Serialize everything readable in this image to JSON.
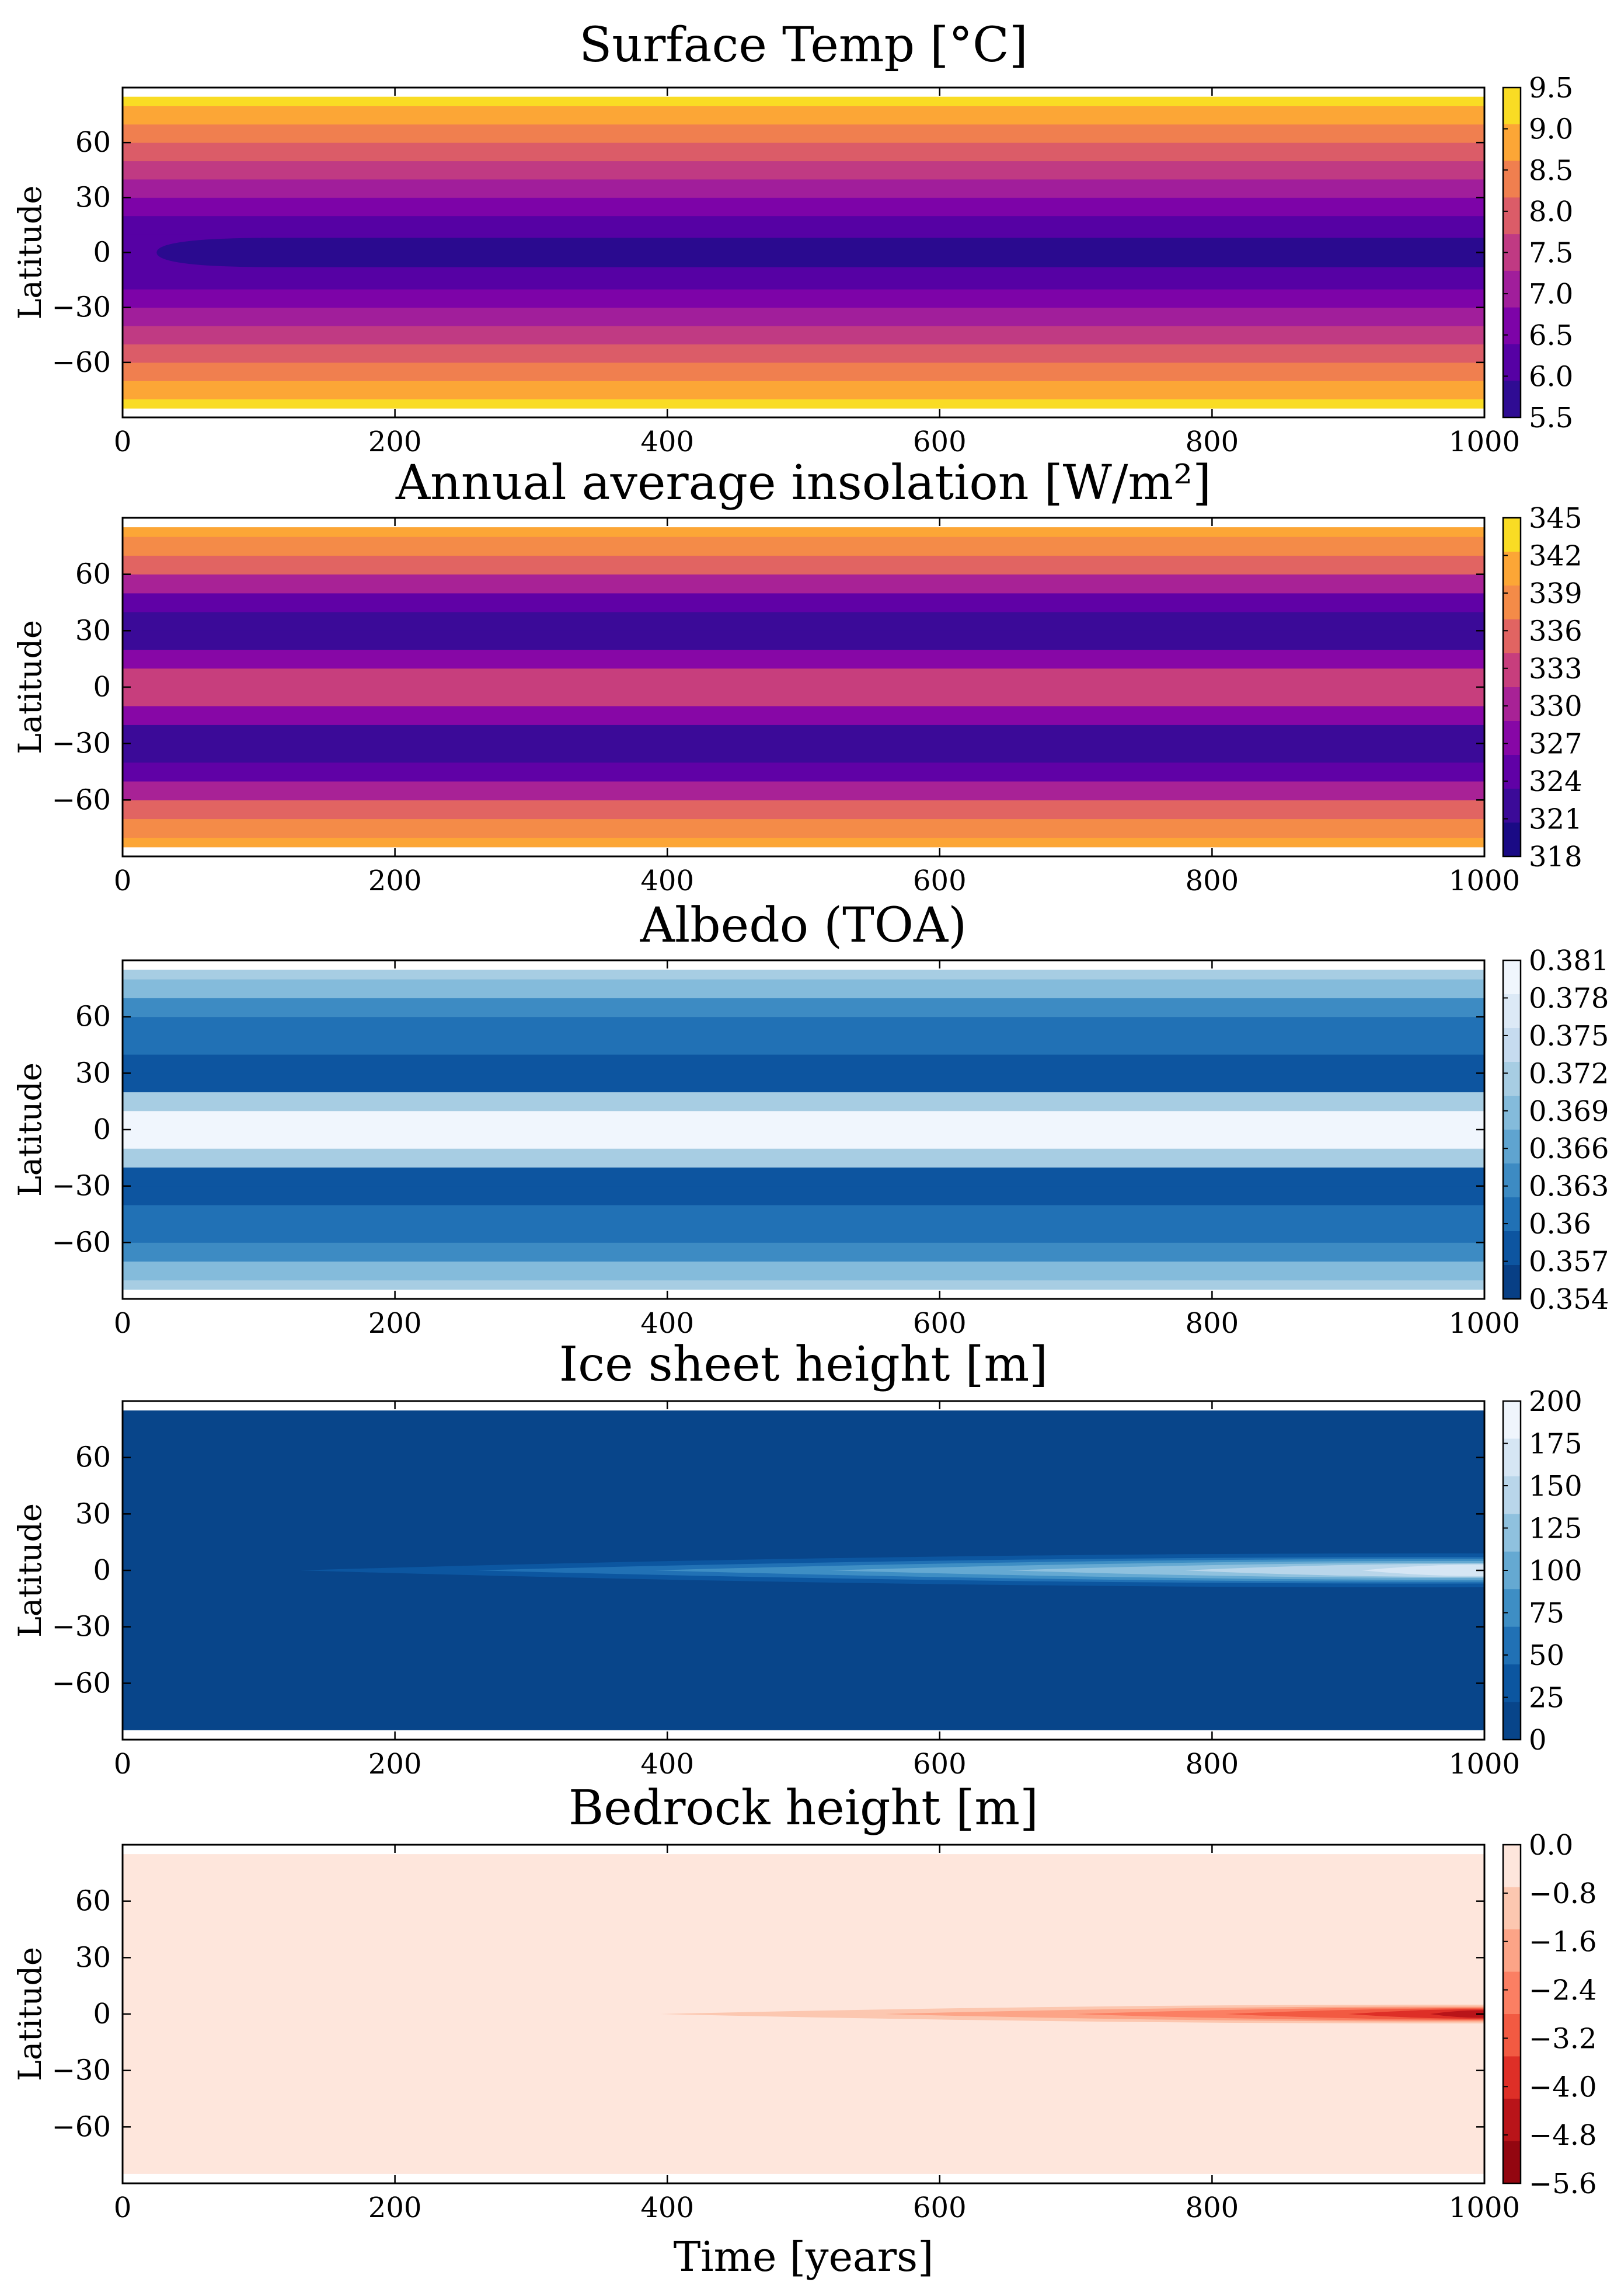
{
  "figure": {
    "xlabel": "Time [years]"
  },
  "chart_data": [
    {
      "type": "heatmap",
      "title": "Surface Temp [°C]",
      "xlabel": "",
      "ylabel": "Latitude",
      "xlim": [
        0,
        1000
      ],
      "ylim": [
        -90,
        90
      ],
      "x_ticks": [
        0,
        200,
        400,
        600,
        800,
        1000
      ],
      "y_ticks": [
        60,
        30,
        0,
        -30,
        -60
      ],
      "colormap": "inferno-like (plasma)",
      "colorbar_levels": [
        5.5,
        6.0,
        6.5,
        7.0,
        7.5,
        8.0,
        8.5,
        9.0,
        9.5
      ],
      "colorbar_colors": [
        "#2f0c93",
        "#5601a4",
        "#7d03a8",
        "#a11e9b",
        "#c03a83",
        "#db5c68",
        "#f07f4f",
        "#fca636",
        "#f9dc24"
      ],
      "pattern": "latitude_bands_constant_in_time_with_equatorial_minimum",
      "band_levels_by_latitude": {
        "latitudes": [
          -85,
          -75,
          -65,
          -55,
          -45,
          -35,
          -25,
          -15,
          -5,
          5,
          15,
          25,
          35,
          45,
          55,
          65,
          75,
          85
        ],
        "values": [
          9.3,
          8.8,
          8.3,
          7.8,
          7.3,
          6.9,
          6.5,
          6.2,
          5.9,
          5.9,
          6.2,
          6.5,
          6.9,
          7.3,
          7.8,
          8.3,
          8.8,
          9.3
        ]
      },
      "grid": false,
      "legend": "colorbar-right"
    },
    {
      "type": "heatmap",
      "title": "Annual average insolation [W/m²]",
      "xlabel": "",
      "ylabel": "Latitude",
      "xlim": [
        0,
        1000
      ],
      "ylim": [
        -90,
        90
      ],
      "x_ticks": [
        0,
        200,
        400,
        600,
        800,
        1000
      ],
      "y_ticks": [
        60,
        30,
        0,
        -30,
        -60
      ],
      "colorbar_ticks": [
        345,
        342,
        339,
        336,
        333,
        330,
        327,
        324,
        321,
        318
      ],
      "colorbar_colors": [
        "#f9dc24",
        "#fca636",
        "#f48b48",
        "#e16462",
        "#c73e7d",
        "#a82296",
        "#8707a6",
        "#6001a6",
        "#3b0a98",
        "#1a0a85"
      ],
      "pattern": "latitude_bands_constant_in_time",
      "band_levels_by_latitude": {
        "latitudes": [
          -85,
          -75,
          -65,
          -55,
          -45,
          -35,
          -25,
          -15,
          -5,
          5,
          15,
          25,
          35,
          45,
          55,
          65,
          75,
          85
        ],
        "values": [
          341,
          339,
          336,
          330,
          325,
          320,
          322,
          328,
          334,
          334,
          328,
          322,
          320,
          325,
          330,
          336,
          339,
          341
        ]
      },
      "grid": false,
      "legend": "colorbar-right"
    },
    {
      "type": "heatmap",
      "title": "Albedo (TOA)",
      "xlabel": "",
      "ylabel": "Latitude",
      "xlim": [
        0,
        1000
      ],
      "ylim": [
        -90,
        90
      ],
      "x_ticks": [
        0,
        200,
        400,
        600,
        800,
        1000
      ],
      "y_ticks": [
        60,
        30,
        0,
        -30,
        -60
      ],
      "colorbar_ticks": [
        0.381,
        0.378,
        0.375,
        0.372,
        0.369,
        0.366,
        0.363,
        0.36,
        0.357,
        0.354
      ],
      "colorbar_colors": [
        "#f0f6fd",
        "#dce9f6",
        "#c6dbef",
        "#a7cde3",
        "#84bbdb",
        "#5fa4d0",
        "#3d8bc3",
        "#2171b5",
        "#0d55a0",
        "#083f85"
      ],
      "pattern": "latitude_bands_constant_in_time",
      "band_levels_by_latitude": {
        "latitudes": [
          -85,
          -75,
          -65,
          -55,
          -45,
          -35,
          -25,
          -15,
          -5,
          5,
          15,
          25,
          35,
          45,
          55,
          65,
          75,
          85
        ],
        "values": [
          0.373,
          0.368,
          0.364,
          0.361,
          0.359,
          0.356,
          0.358,
          0.372,
          0.38,
          0.38,
          0.372,
          0.358,
          0.356,
          0.359,
          0.361,
          0.364,
          0.368,
          0.373
        ]
      },
      "grid": false,
      "legend": "colorbar-right"
    },
    {
      "type": "heatmap",
      "title": "Ice sheet height [m]",
      "xlabel": "",
      "ylabel": "Latitude",
      "xlim": [
        0,
        1000
      ],
      "ylim": [
        -90,
        90
      ],
      "x_ticks": [
        0,
        200,
        400,
        600,
        800,
        1000
      ],
      "y_ticks": [
        60,
        30,
        0,
        -30,
        -60
      ],
      "colorbar_ticks": [
        200,
        175,
        150,
        125,
        100,
        75,
        50,
        25,
        0
      ],
      "colorbar_colors": [
        "#eff5fc",
        "#d6e6f4",
        "#b9d6ea",
        "#8fc1de",
        "#65a9d2",
        "#3e8ec4",
        "#2171b5",
        "#0c56a0",
        "#08458a"
      ],
      "pattern": "equatorial_ice_growing_linearly_with_time",
      "contour_onsets": [
        {
          "level": 25,
          "start_year": 130,
          "half_width_deg": 9
        },
        {
          "level": 50,
          "start_year": 260,
          "half_width_deg": 7
        },
        {
          "level": 75,
          "start_year": 390,
          "half_width_deg": 6
        },
        {
          "level": 100,
          "start_year": 520,
          "half_width_deg": 5
        },
        {
          "level": 125,
          "start_year": 650,
          "half_width_deg": 4
        },
        {
          "level": 150,
          "start_year": 780,
          "half_width_deg": 3.5
        },
        {
          "level": 175,
          "start_year": 910,
          "half_width_deg": 3
        }
      ],
      "grid": false,
      "legend": "colorbar-right"
    },
    {
      "type": "heatmap",
      "title": "Bedrock height [m]",
      "xlabel": "Time [years]",
      "ylabel": "Latitude",
      "xlim": [
        0,
        1000
      ],
      "ylim": [
        -90,
        90
      ],
      "x_ticks": [
        0,
        200,
        400,
        600,
        800,
        1000
      ],
      "y_ticks": [
        60,
        30,
        0,
        -30,
        -60
      ],
      "colorbar_ticks": [
        0.0,
        -0.8,
        -1.6,
        -2.4,
        -3.2,
        -4.0,
        -4.8,
        -5.6
      ],
      "colorbar_colors": [
        "#fee6dc",
        "#fcc7b0",
        "#fca487",
        "#fb7f63",
        "#f25a42",
        "#de2f27",
        "#b91419",
        "#930610"
      ],
      "pattern": "equatorial_depression_growing_with_time",
      "contour_onsets": [
        {
          "level": -0.8,
          "start_year": 395,
          "half_width_deg": 5
        },
        {
          "level": -1.6,
          "start_year": 560,
          "half_width_deg": 4
        },
        {
          "level": -2.4,
          "start_year": 700,
          "half_width_deg": 3.5
        },
        {
          "level": -3.2,
          "start_year": 810,
          "half_width_deg": 3
        },
        {
          "level": -4.0,
          "start_year": 900,
          "half_width_deg": 2.5
        },
        {
          "level": -4.8,
          "start_year": 960,
          "half_width_deg": 2
        }
      ],
      "grid": false,
      "legend": "colorbar-right"
    }
  ]
}
